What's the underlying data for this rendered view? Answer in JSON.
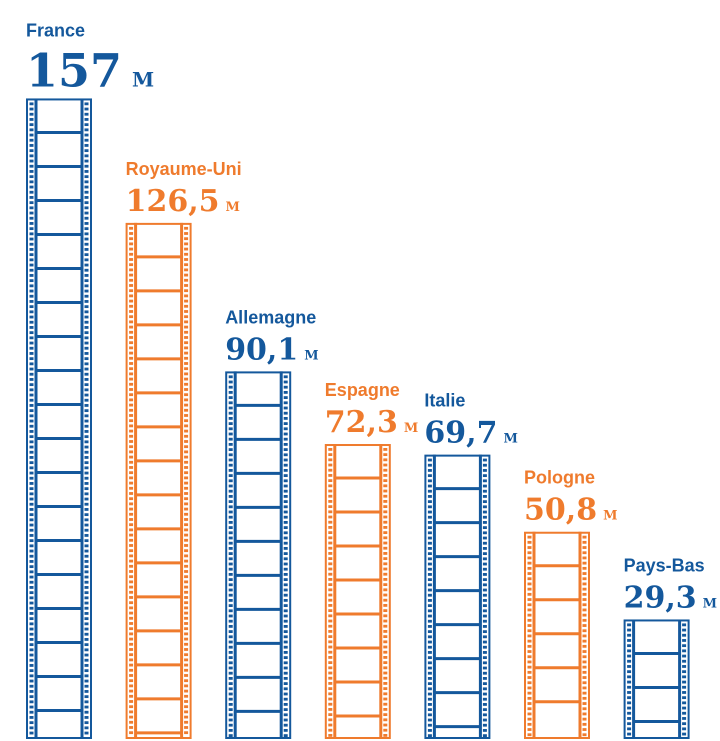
{
  "chart_data": {
    "type": "bar",
    "categories": [
      "France",
      "Royaume-Uni",
      "Allemagne",
      "Espagne",
      "Italie",
      "Pologne",
      "Pays-Bas"
    ],
    "values": [
      157,
      126.5,
      90.1,
      72.3,
      69.7,
      50.8,
      29.3
    ],
    "value_labels": [
      "157",
      "126,5",
      "90,1",
      "72,3",
      "69,7",
      "50,8",
      "29,3"
    ],
    "unit": "M",
    "bar_colors": [
      "#14589c",
      "#ef7b2d",
      "#14589c",
      "#ef7b2d",
      "#14589c",
      "#ef7b2d",
      "#14589c"
    ],
    "bar_style": "film-strip",
    "grid": false,
    "legend": "none"
  }
}
